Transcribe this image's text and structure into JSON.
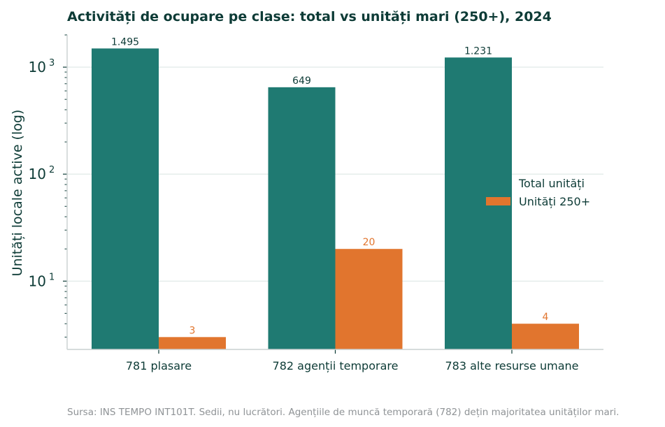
{
  "chart_data": {
    "type": "bar",
    "title": "Activități de ocupare pe clase: total vs unități mari (250+), 2024",
    "ylabel": "Unități locale active (log)",
    "xlabel": "",
    "yscale": "log",
    "ylim": [
      2.3,
      2000
    ],
    "yticks": [
      {
        "value": 10,
        "base": "10",
        "exp": "1"
      },
      {
        "value": 100,
        "base": "10",
        "exp": "2"
      },
      {
        "value": 1000,
        "base": "10",
        "exp": "3"
      }
    ],
    "grid": true,
    "legend_position": "right",
    "categories": [
      "781 plasare",
      "782 agenții temporare",
      "783 alte resurse umane"
    ],
    "series": [
      {
        "name": "Total unități",
        "color": "#1f7a72",
        "values": [
          1495,
          649,
          1231
        ],
        "labels": [
          "1.495",
          "649",
          "1.231"
        ]
      },
      {
        "name": "Unități 250+",
        "color": "#e1752e",
        "values": [
          3,
          20,
          4
        ],
        "labels": [
          "3",
          "20",
          "4"
        ]
      }
    ],
    "footnote": "Sursa: INS TEMPO INT101T. Sedii, nu lucrători. Agențiile de muncă temporară (782) dețin majoritatea unităților mari."
  }
}
